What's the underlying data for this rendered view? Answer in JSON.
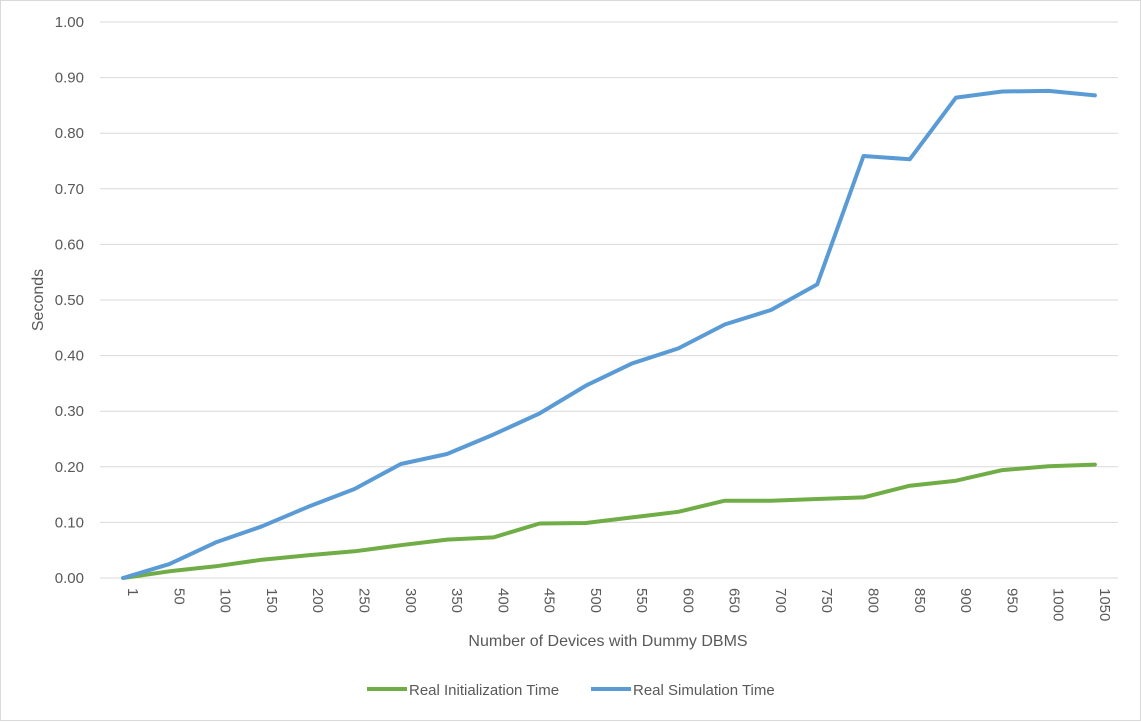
{
  "chart_data": {
    "type": "line",
    "title": "",
    "xlabel": "Number of Devices with Dummy DBMS",
    "ylabel": "Seconds",
    "ylim": [
      0,
      1
    ],
    "yticks": [
      "0.00",
      "0.10",
      "0.20",
      "0.30",
      "0.40",
      "0.50",
      "0.60",
      "0.70",
      "0.80",
      "0.90",
      "1.00"
    ],
    "categories": [
      "1",
      "50",
      "100",
      "150",
      "200",
      "250",
      "300",
      "350",
      "400",
      "450",
      "500",
      "550",
      "600",
      "650",
      "700",
      "750",
      "800",
      "850",
      "900",
      "950",
      "1000",
      "1050"
    ],
    "grid": true,
    "legend_position": "bottom",
    "series": [
      {
        "name": "Real Initialization Time",
        "color": "#70ad47",
        "values": [
          0.0,
          0.012,
          0.021,
          0.033,
          0.041,
          0.048,
          0.059,
          0.069,
          0.073,
          0.098,
          0.099,
          0.109,
          0.119,
          0.139,
          0.139,
          0.142,
          0.145,
          0.166,
          0.175,
          0.194,
          0.201,
          0.204
        ]
      },
      {
        "name": "Real Simulation Time",
        "color": "#5b9bd5",
        "values": [
          0.0,
          0.025,
          0.064,
          0.093,
          0.128,
          0.16,
          0.205,
          0.223,
          0.258,
          0.296,
          0.346,
          0.386,
          0.413,
          0.456,
          0.482,
          0.528,
          0.759,
          0.753,
          0.864,
          0.875,
          0.876,
          0.868
        ]
      }
    ]
  }
}
